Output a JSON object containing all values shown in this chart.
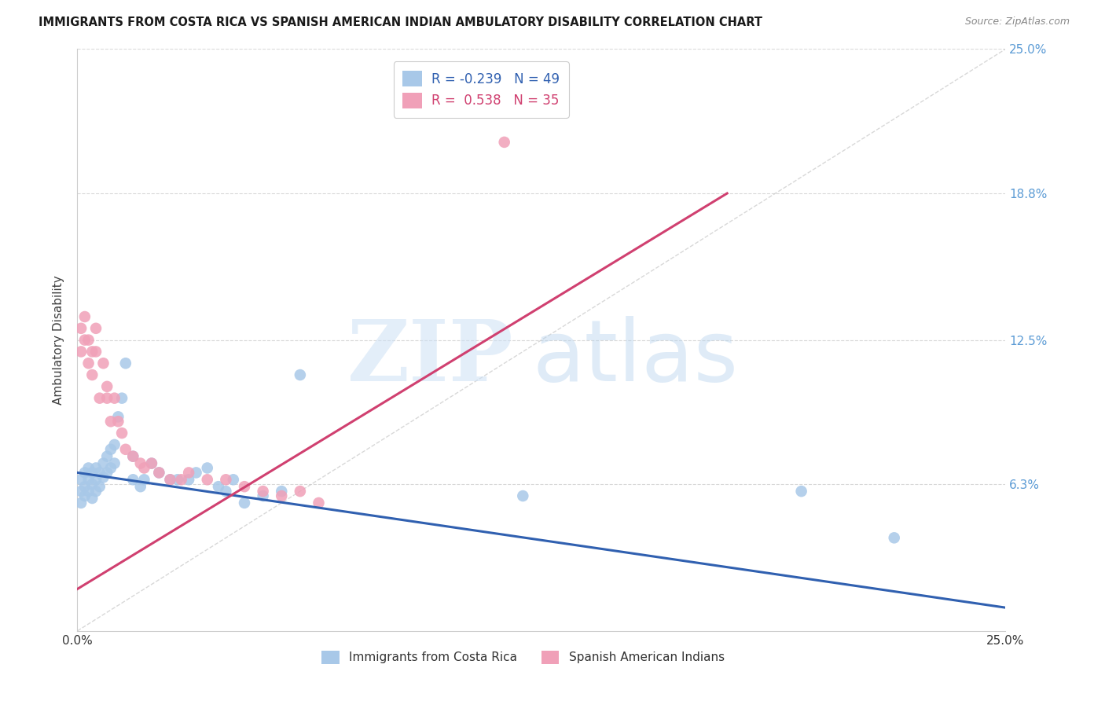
{
  "title": "IMMIGRANTS FROM COSTA RICA VS SPANISH AMERICAN INDIAN AMBULATORY DISABILITY CORRELATION CHART",
  "source": "Source: ZipAtlas.com",
  "ylabel": "Ambulatory Disability",
  "xlim": [
    0.0,
    0.25
  ],
  "ylim": [
    0.0,
    0.25
  ],
  "ytick_vals": [
    0.063,
    0.125,
    0.188,
    0.25
  ],
  "ytick_labels": [
    "6.3%",
    "12.5%",
    "18.8%",
    "25.0%"
  ],
  "xtick_vals": [
    0.0,
    0.05,
    0.1,
    0.15,
    0.2,
    0.25
  ],
  "xtick_labels": [
    "0.0%",
    "",
    "",
    "",
    "",
    "25.0%"
  ],
  "blue_R": -0.239,
  "blue_N": 49,
  "pink_R": 0.538,
  "pink_N": 35,
  "blue_color": "#a8c8e8",
  "pink_color": "#f0a0b8",
  "blue_line_color": "#3060b0",
  "pink_line_color": "#d04070",
  "diag_color": "#c8c8c8",
  "right_label_color": "#5b9bd5",
  "grid_color": "#d8d8d8",
  "legend_label_blue": "Immigrants from Costa Rica",
  "legend_label_pink": "Spanish American Indians",
  "blue_line_x0": 0.0,
  "blue_line_y0": 0.068,
  "blue_line_x1": 0.25,
  "blue_line_y1": 0.01,
  "pink_line_x0": 0.0,
  "pink_line_y0": 0.018,
  "pink_line_x1": 0.175,
  "pink_line_y1": 0.188,
  "blue_pts_x": [
    0.001,
    0.001,
    0.001,
    0.002,
    0.002,
    0.002,
    0.003,
    0.003,
    0.003,
    0.004,
    0.004,
    0.004,
    0.005,
    0.005,
    0.005,
    0.006,
    0.006,
    0.007,
    0.007,
    0.008,
    0.008,
    0.009,
    0.009,
    0.01,
    0.01,
    0.011,
    0.012,
    0.013,
    0.015,
    0.015,
    0.017,
    0.018,
    0.02,
    0.022,
    0.025,
    0.027,
    0.03,
    0.032,
    0.035,
    0.038,
    0.04,
    0.042,
    0.045,
    0.05,
    0.055,
    0.06,
    0.12,
    0.195,
    0.22
  ],
  "blue_pts_y": [
    0.065,
    0.06,
    0.055,
    0.068,
    0.062,
    0.058,
    0.07,
    0.065,
    0.06,
    0.068,
    0.063,
    0.057,
    0.07,
    0.065,
    0.06,
    0.068,
    0.062,
    0.072,
    0.066,
    0.075,
    0.068,
    0.078,
    0.07,
    0.08,
    0.072,
    0.092,
    0.1,
    0.115,
    0.065,
    0.075,
    0.062,
    0.065,
    0.072,
    0.068,
    0.065,
    0.065,
    0.065,
    0.068,
    0.07,
    0.062,
    0.06,
    0.065,
    0.055,
    0.058,
    0.06,
    0.11,
    0.058,
    0.06,
    0.04
  ],
  "pink_pts_x": [
    0.001,
    0.001,
    0.002,
    0.002,
    0.003,
    0.003,
    0.004,
    0.004,
    0.005,
    0.005,
    0.006,
    0.007,
    0.008,
    0.008,
    0.009,
    0.01,
    0.011,
    0.012,
    0.013,
    0.015,
    0.017,
    0.018,
    0.02,
    0.022,
    0.025,
    0.028,
    0.03,
    0.035,
    0.04,
    0.045,
    0.05,
    0.055,
    0.06,
    0.065,
    0.115
  ],
  "pink_pts_y": [
    0.13,
    0.12,
    0.135,
    0.125,
    0.125,
    0.115,
    0.12,
    0.11,
    0.13,
    0.12,
    0.1,
    0.115,
    0.105,
    0.1,
    0.09,
    0.1,
    0.09,
    0.085,
    0.078,
    0.075,
    0.072,
    0.07,
    0.072,
    0.068,
    0.065,
    0.065,
    0.068,
    0.065,
    0.065,
    0.062,
    0.06,
    0.058,
    0.06,
    0.055,
    0.21
  ]
}
